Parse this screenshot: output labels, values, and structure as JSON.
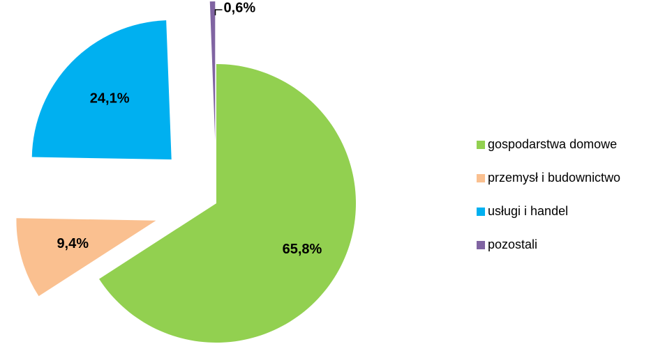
{
  "chart_data": {
    "type": "pie",
    "categories": [
      "gospodarstwa domowe",
      "przemysł i budownictwo",
      "usługi i handel",
      "pozostali"
    ],
    "values": [
      65.8,
      9.4,
      24.1,
      0.6
    ],
    "value_labels": [
      "65,8%",
      "9,4%",
      "24,1%",
      "0,6%"
    ],
    "colors": [
      "#92d050",
      "#fac090",
      "#00b0f0",
      "#8064a2"
    ],
    "legend": "right"
  }
}
